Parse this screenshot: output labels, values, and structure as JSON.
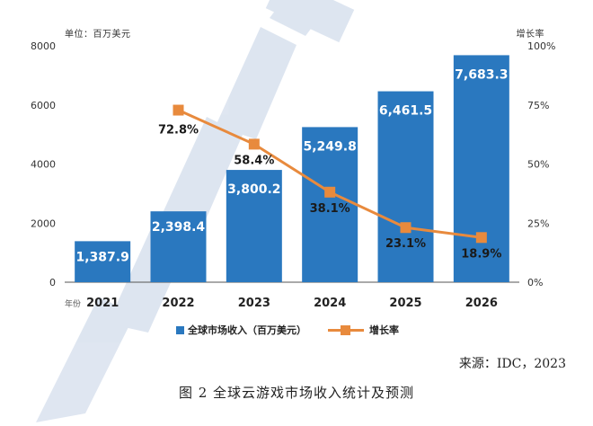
{
  "chart_data": {
    "type": "bar",
    "categories": [
      "2021",
      "2022",
      "2023",
      "2024",
      "2025",
      "2026"
    ],
    "x_axis_label": "年份",
    "left_unit": "单位：百万美元",
    "right_unit": "增长率",
    "series": [
      {
        "name": "全球市场收入（百万美元）",
        "type": "bar",
        "axis": "left",
        "values": [
          1387.9,
          2398.4,
          3800.2,
          5249.8,
          6461.5,
          7683.3
        ],
        "labels": [
          "1,387.9",
          "2,398.4",
          "3,800.2",
          "5,249.8",
          "6,461.5",
          "7,683.3"
        ],
        "color": "#2a78bf"
      },
      {
        "name": "增长率",
        "type": "line",
        "axis": "right",
        "values": [
          null,
          72.8,
          58.4,
          38.1,
          23.1,
          18.9
        ],
        "labels": [
          null,
          "72.8%",
          "58.4%",
          "38.1%",
          "23.1%",
          "18.9%"
        ],
        "color": "#e88a3d"
      }
    ],
    "left_axis": {
      "min": 0,
      "max": 8000,
      "ticks": [
        "0",
        "2000",
        "4000",
        "6000",
        "8000"
      ]
    },
    "right_axis": {
      "min": 0,
      "max": 100,
      "ticks": [
        "0%",
        "25%",
        "50%",
        "75%",
        "100%"
      ]
    },
    "grid": false,
    "legend_position": "bottom"
  },
  "source": "来源：IDC，2023",
  "caption": "图 2 全球云游戏市场收入统计及预测",
  "watermark_color": "#3563a8"
}
